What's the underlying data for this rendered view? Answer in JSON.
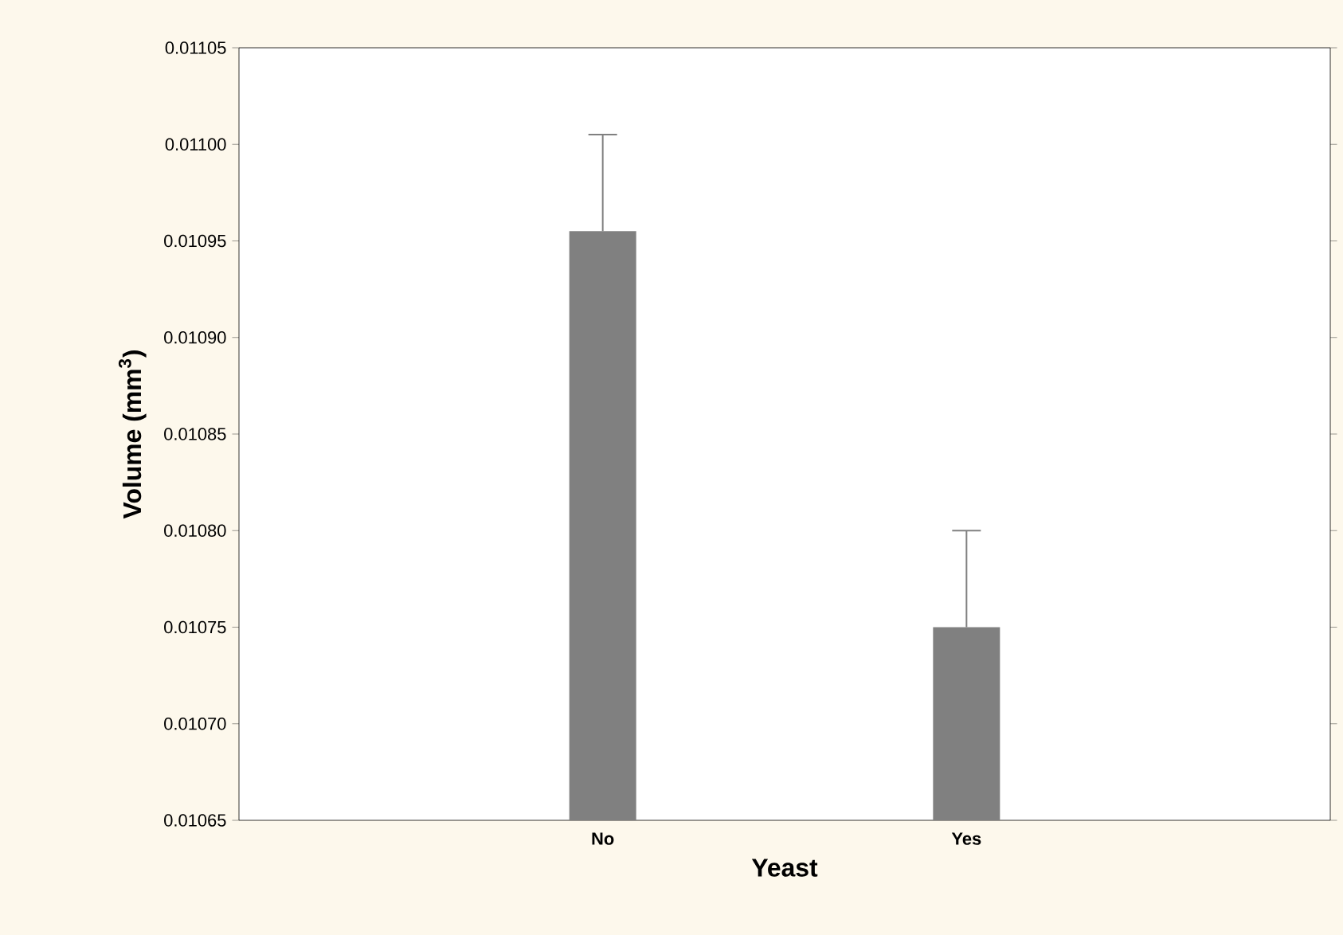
{
  "chart_data": {
    "type": "bar",
    "xlabel": "Yeast",
    "ylabel": "Volume (mm$^{3}$)",
    "categories": [
      "No",
      "Yes"
    ],
    "values": [
      0.010955,
      0.01075
    ],
    "errors": [
      [
        0.010955,
        0.011005
      ],
      [
        0.01075,
        0.0108
      ]
    ],
    "color": "#808080",
    "ylim": [
      0.01065,
      0.01105
    ],
    "yticks": [
      {
        "value": 0.01065,
        "label": "0.01065"
      },
      {
        "value": 0.0107,
        "label": "0.01070"
      },
      {
        "value": 0.01075,
        "label": "0.01075"
      },
      {
        "value": 0.0108,
        "label": "0.01080"
      },
      {
        "value": 0.01085,
        "label": "0.01085"
      },
      {
        "value": 0.0109,
        "label": "0.01090"
      },
      {
        "value": 0.01095,
        "label": "0.01095"
      },
      {
        "value": 0.011,
        "label": "0.01100"
      },
      {
        "value": 0.01105,
        "label": "0.01105"
      }
    ],
    "grid": false
  }
}
